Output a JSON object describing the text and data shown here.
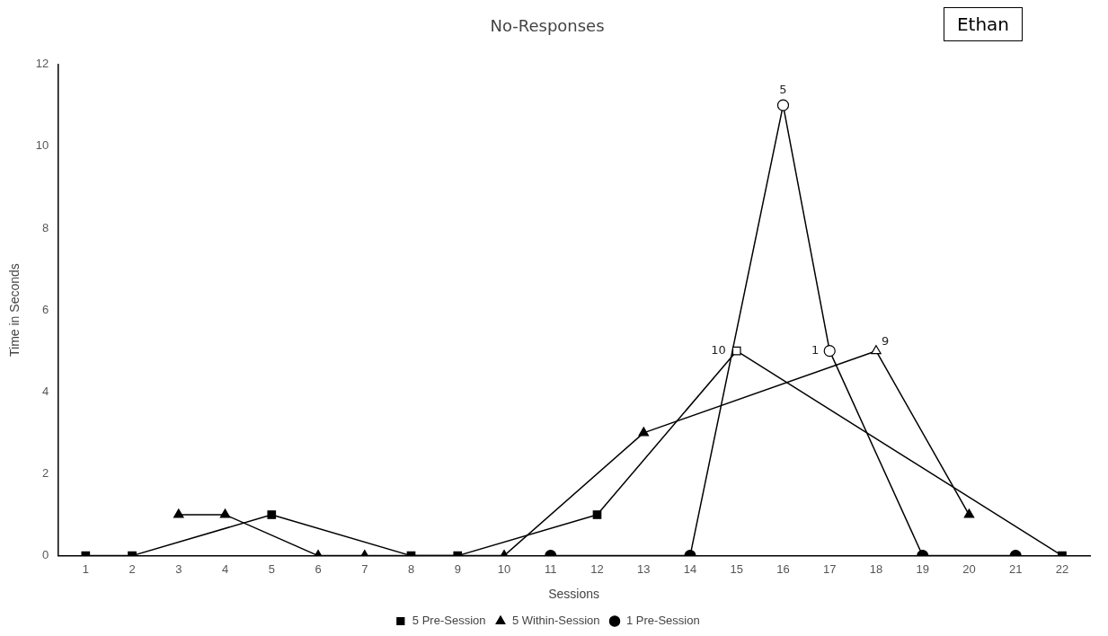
{
  "chart_data": {
    "type": "line",
    "title": "No-Responses",
    "xlabel": "Sessions",
    "ylabel": "Time in Seconds",
    "x": [
      1,
      2,
      3,
      4,
      5,
      6,
      7,
      8,
      9,
      10,
      11,
      12,
      13,
      14,
      15,
      16,
      17,
      18,
      19,
      20,
      21,
      22
    ],
    "series": [
      {
        "name": "5 Pre-Session",
        "color": "#000000",
        "marker": "square",
        "values": [
          0,
          0,
          null,
          null,
          1,
          null,
          null,
          0,
          0,
          null,
          null,
          1,
          null,
          null,
          5,
          null,
          null,
          null,
          null,
          null,
          null,
          0
        ]
      },
      {
        "name": "5 Within-Session",
        "color": "#000000",
        "marker": "triangle",
        "values": [
          null,
          null,
          1,
          1,
          null,
          0,
          0,
          null,
          null,
          0,
          null,
          null,
          3,
          null,
          null,
          null,
          null,
          5,
          null,
          1,
          null,
          null
        ]
      },
      {
        "name": "1 Pre-Session",
        "color": "#000000",
        "marker": "circle",
        "values": [
          null,
          null,
          null,
          null,
          null,
          null,
          null,
          null,
          null,
          null,
          0,
          null,
          null,
          0,
          null,
          11,
          5,
          null,
          0,
          null,
          0,
          null
        ]
      }
    ],
    "xlim": [
      0.4,
      22.6
    ],
    "xticks": [
      1,
      2,
      3,
      4,
      5,
      6,
      7,
      8,
      9,
      10,
      11,
      12,
      13,
      14,
      15,
      16,
      17,
      18,
      19,
      20,
      21,
      22
    ],
    "ylim": [
      0,
      12
    ],
    "yticks": [
      0,
      2,
      4,
      6,
      8,
      10,
      12
    ],
    "grid": false,
    "legend": "bottom",
    "line_style": "solid",
    "annotations": [
      "Ethan",
      {
        "text": "10",
        "x": 15,
        "y": 5
      },
      {
        "text": "9",
        "x": 18,
        "y": 5
      },
      {
        "text": "5",
        "x": 16,
        "y": 11
      },
      {
        "text": "1",
        "x": 17,
        "y": 5
      }
    ]
  }
}
